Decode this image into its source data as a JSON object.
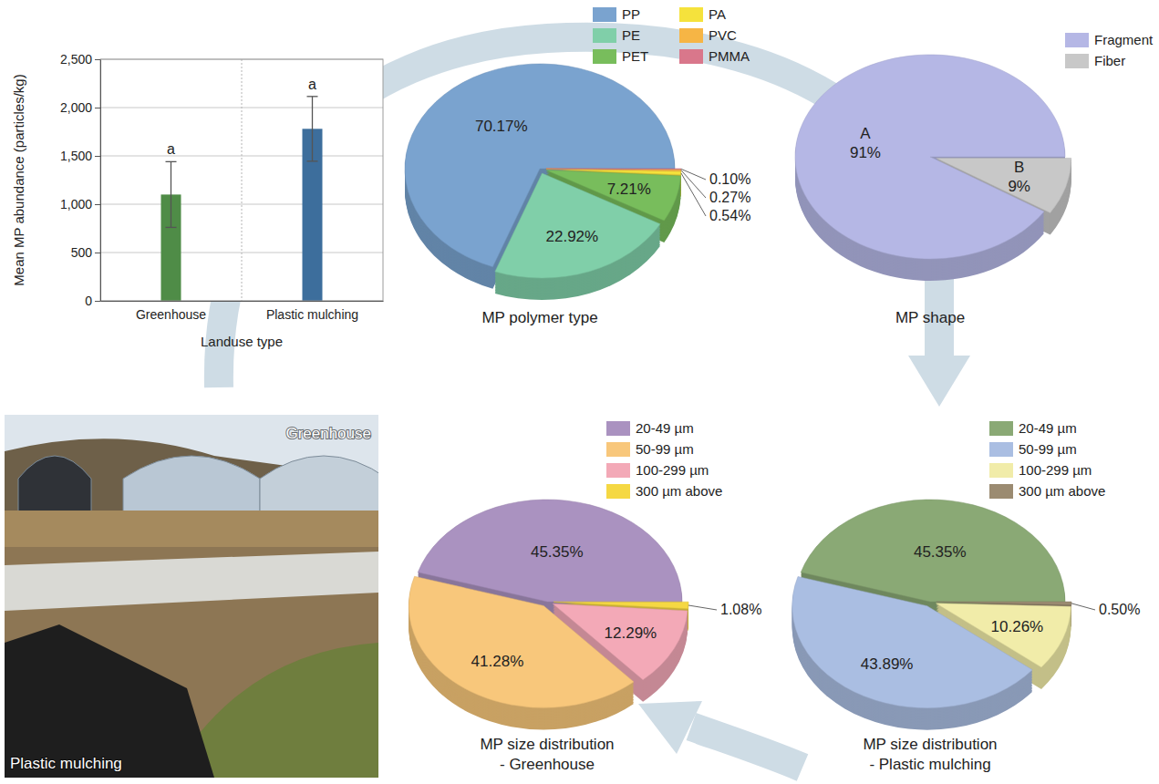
{
  "chart_data": [
    {
      "type": "bar",
      "categories": [
        "Greenhouse",
        "Plastic mulching"
      ],
      "values": [
        1100,
        1780
      ],
      "errors": [
        340,
        335
      ],
      "annotations": [
        "a",
        "a"
      ],
      "colors": [
        "#4f8c47",
        "#3d6e9c"
      ],
      "x_label": "Landuse type",
      "y_label": "Mean MP abundance (particles/kg)",
      "ylim": [
        0,
        2500
      ],
      "yticks": [
        0,
        500,
        {
          "value": 1000,
          "label": "1,000"
        },
        {
          "value": 1500,
          "label": "1,500"
        },
        {
          "value": 2000,
          "label": "2,000"
        },
        {
          "value": 2500,
          "label": "2,500"
        }
      ],
      "grid": true
    },
    {
      "type": "pie",
      "title": "MP polymer type",
      "categories": [
        "PP",
        "PE",
        "PET",
        "PA",
        "PVC",
        "PMMA"
      ],
      "values": [
        70.17,
        22.92,
        7.21,
        0.54,
        0.27,
        0.1
      ],
      "value_labels": [
        "70.17%",
        "22.92%",
        "7.21%",
        "0.54%",
        "0.27%",
        "0.10%"
      ],
      "colors": [
        "#7aa3cf",
        "#80cfa9",
        "#78bd5c",
        "#f5e23c",
        "#f6b545",
        "#d9778b"
      ],
      "legend": "top-right",
      "data_labels": true
    },
    {
      "type": "pie",
      "title": "MP shape",
      "categories": [
        "Fragment",
        "Fiber"
      ],
      "values": [
        91,
        9
      ],
      "value_labels": [
        "91%",
        "9%"
      ],
      "slice_letters": [
        "A",
        "B"
      ],
      "colors": [
        "#b5b7e5",
        "#c8c8c8"
      ],
      "legend": "top-right",
      "data_labels": true
    },
    {
      "type": "pie",
      "title": "MP size distribution - Greenhouse",
      "categories": [
        "20-49 µm",
        "50-99 µm",
        "100-299 µm",
        "300 µm above"
      ],
      "values": [
        45.35,
        41.28,
        12.29,
        1.08
      ],
      "value_labels": [
        "45.35%",
        "41.28%",
        "12.29%",
        "1.08%"
      ],
      "colors": [
        "#aa92c0",
        "#f8c77b",
        "#f3a9b7",
        "#f5d843"
      ],
      "legend": "top-right",
      "data_labels": true
    },
    {
      "type": "pie",
      "title": "MP size distribution - Plastic mulching",
      "categories": [
        "20-49 µm",
        "50-99 µm",
        "100-299 µm",
        "300 µm above"
      ],
      "values": [
        45.35,
        43.89,
        10.26,
        0.5
      ],
      "value_labels": [
        "45.35%",
        "43.89%",
        "10.26%",
        "0.50%"
      ],
      "colors": [
        "#8aa975",
        "#aabee2",
        "#f1eca9",
        "#9b8b71"
      ],
      "legend": "top-right",
      "data_labels": true
    }
  ],
  "photo": {
    "labels": [
      "Greenhouse",
      "Plastic mulching"
    ]
  }
}
